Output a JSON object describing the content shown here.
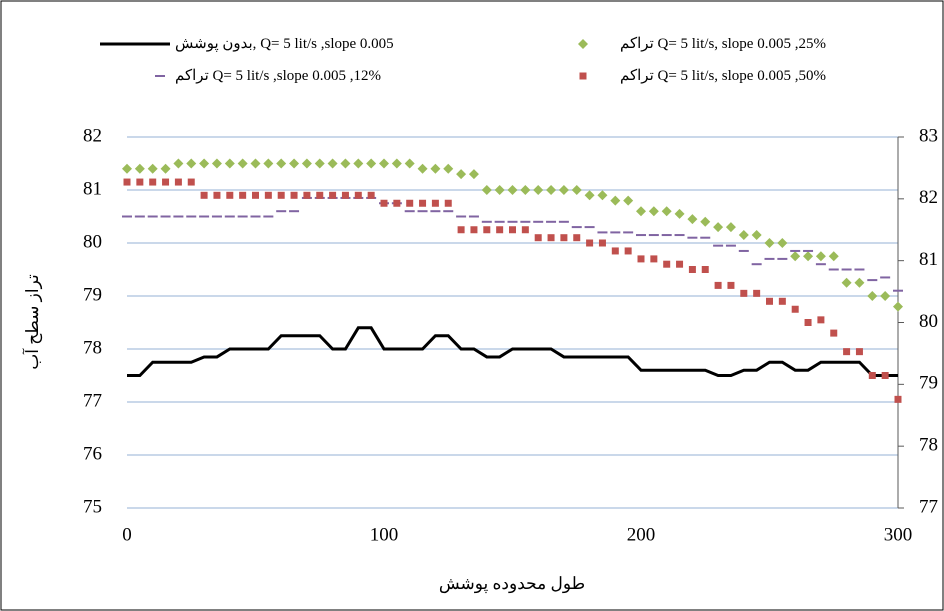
{
  "chart_data": {
    "type": "line-scatter",
    "xlabel": "طول محدوده پوشش",
    "ylabel": "تراز سطح آب",
    "x": [
      0,
      5,
      10,
      15,
      20,
      25,
      30,
      35,
      40,
      45,
      50,
      55,
      60,
      65,
      70,
      75,
      80,
      85,
      90,
      95,
      100,
      105,
      110,
      115,
      120,
      125,
      130,
      135,
      140,
      145,
      150,
      155,
      160,
      165,
      170,
      175,
      180,
      185,
      190,
      195,
      200,
      205,
      210,
      215,
      220,
      225,
      230,
      235,
      240,
      245,
      250,
      255,
      260,
      265,
      270,
      275,
      280,
      285,
      290,
      295,
      300
    ],
    "xlim": [
      0,
      300
    ],
    "xticks": [
      0,
      100,
      200,
      300
    ],
    "ylim": [
      75,
      82
    ],
    "yticks": [
      75,
      76,
      77,
      78,
      79,
      80,
      81,
      82
    ],
    "y2lim": [
      77,
      83
    ],
    "y2ticks": [
      77,
      78,
      79,
      80,
      81,
      82,
      83
    ],
    "grid": true,
    "legend": "top",
    "series": [
      {
        "name": "Q= 5 lit/s ,slope 0.005 ,بدون پوشش",
        "marker": "line",
        "color": "#000000",
        "values": [
          77.5,
          77.5,
          77.75,
          77.75,
          77.75,
          77.75,
          77.85,
          77.85,
          78.0,
          78.0,
          78.0,
          78.0,
          78.25,
          78.25,
          78.25,
          78.25,
          78.0,
          78.0,
          78.4,
          78.4,
          78.0,
          78.0,
          78.0,
          78.0,
          78.25,
          78.25,
          78.0,
          78.0,
          77.85,
          77.85,
          78.0,
          78.0,
          78.0,
          78.0,
          77.85,
          77.85,
          77.85,
          77.85,
          77.85,
          77.85,
          77.6,
          77.6,
          77.6,
          77.6,
          77.6,
          77.6,
          77.5,
          77.5,
          77.6,
          77.6,
          77.75,
          77.75,
          77.6,
          77.6,
          77.75,
          77.75,
          77.75,
          77.75,
          77.5,
          77.5,
          77.5
        ]
      },
      {
        "name": "Q= 5 lit/s, slope 0.005 ,25% تراکم",
        "marker": "diamond",
        "color": "#9bbb59",
        "values": [
          81.4,
          81.4,
          81.4,
          81.4,
          81.5,
          81.5,
          81.5,
          81.5,
          81.5,
          81.5,
          81.5,
          81.5,
          81.5,
          81.5,
          81.5,
          81.5,
          81.5,
          81.5,
          81.5,
          81.5,
          81.5,
          81.5,
          81.5,
          81.4,
          81.4,
          81.4,
          81.3,
          81.3,
          81.0,
          81.0,
          81.0,
          81.0,
          81.0,
          81.0,
          81.0,
          81.0,
          80.9,
          80.9,
          80.8,
          80.8,
          80.6,
          80.6,
          80.6,
          80.55,
          80.45,
          80.4,
          80.3,
          80.3,
          80.15,
          80.15,
          80.0,
          80.0,
          79.75,
          79.75,
          79.75,
          79.75,
          79.25,
          79.25,
          79.0,
          79.0,
          78.8
        ]
      },
      {
        "name": "Q= 5 lit/s ,slope 0.005 ,12% تراکم",
        "marker": "dash",
        "color": "#8064a2",
        "values": [
          80.5,
          80.5,
          80.5,
          80.5,
          80.5,
          80.5,
          80.5,
          80.5,
          80.5,
          80.5,
          80.5,
          80.5,
          80.6,
          80.6,
          80.85,
          80.85,
          80.85,
          80.85,
          80.85,
          80.85,
          80.75,
          80.75,
          80.6,
          80.6,
          80.6,
          80.6,
          80.5,
          80.5,
          80.4,
          80.4,
          80.4,
          80.4,
          80.4,
          80.4,
          80.4,
          80.3,
          80.3,
          80.2,
          80.2,
          80.2,
          80.15,
          80.15,
          80.15,
          80.15,
          80.1,
          80.1,
          79.95,
          79.95,
          79.85,
          79.6,
          79.7,
          79.7,
          79.85,
          79.85,
          79.6,
          79.5,
          79.5,
          79.5,
          79.3,
          79.35,
          79.1
        ]
      },
      {
        "name": "Q= 5 lit/s,  slope 0.005 ,50% تراکم",
        "marker": "square",
        "color": "#c0504d",
        "values": [
          81.15,
          81.15,
          81.15,
          81.15,
          81.15,
          81.15,
          80.9,
          80.9,
          80.9,
          80.9,
          80.9,
          80.9,
          80.9,
          80.9,
          80.9,
          80.9,
          80.9,
          80.9,
          80.9,
          80.9,
          80.75,
          80.75,
          80.75,
          80.75,
          80.75,
          80.75,
          80.25,
          80.25,
          80.25,
          80.25,
          80.25,
          80.25,
          80.1,
          80.1,
          80.1,
          80.1,
          80.0,
          80.0,
          79.85,
          79.85,
          79.7,
          79.7,
          79.6,
          79.6,
          79.5,
          79.5,
          79.2,
          79.2,
          79.05,
          79.05,
          78.9,
          78.9,
          78.75,
          78.5,
          78.55,
          78.3,
          77.95,
          77.95,
          77.5,
          77.5,
          77.05
        ]
      }
    ]
  }
}
